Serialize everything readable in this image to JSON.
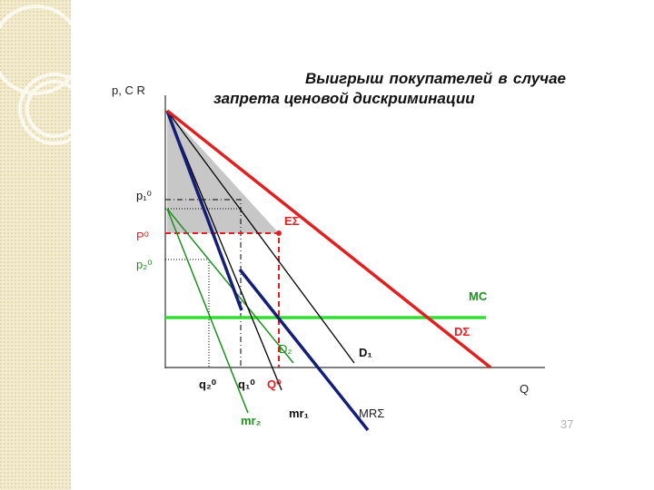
{
  "title": "Выигрыш покупателей в случае запрета ценовой дискриминации",
  "axes": {
    "y_label": "p, C R",
    "x_label": "Q"
  },
  "price_labels": {
    "p1": "p₁⁰",
    "P": "P⁰",
    "p2": "p₂⁰"
  },
  "quantity_labels": {
    "q2": "q₂⁰",
    "q1": "q₁⁰",
    "Q": "Q⁰"
  },
  "curve_labels": {
    "E": "EΣ",
    "MC": "MC",
    "D_sum": "DΣ",
    "D2": "D₂",
    "D1": "D₁",
    "mr2": "mr₂",
    "mr1": "mr₁",
    "MR_sum": "MRΣ"
  },
  "page_number": "37"
}
